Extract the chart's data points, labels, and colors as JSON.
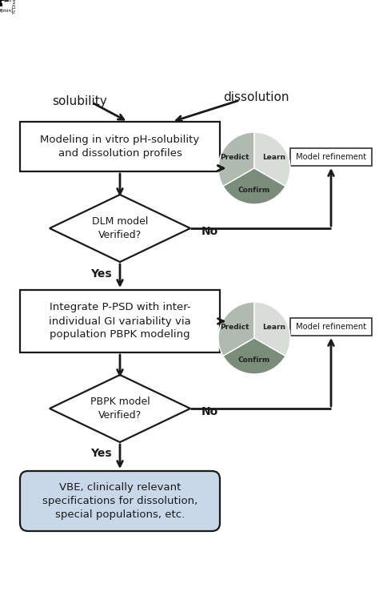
{
  "bg_color": "#ffffff",
  "box_color": "#ffffff",
  "box_edge": "#1a1a1a",
  "vbe_box_color": "#c8d8e8",
  "diamond_color": "#ffffff",
  "diamond_edge": "#1a1a1a",
  "arrow_color": "#1a1a1a",
  "text_color": "#1a1a1a",
  "pie_colors_1": [
    "#b0bab0",
    "#d8ddd8",
    "#7a8c7a"
  ],
  "pie_colors_2": [
    "#b0bab0",
    "#d8ddd8",
    "#7a8c7a"
  ],
  "pie_labels": [
    "Predict",
    "Learn",
    "Confirm"
  ],
  "refinement_box_color": "#ffffff",
  "refinement_box_edge": "#333333",
  "refinement_text": "Model refinement",
  "box1_text": "Modeling in vitro pH-solubility\nand dissolution profiles",
  "box2_text": "Integrate P-PSD with inter-\nindividual GI variability via\npopulation PBPK modeling",
  "box3_text": "VBE, clinically relevant\nspecifications for dissolution,\nspecial populations, etc.",
  "diamond1_text": "DLM model\nVerified?",
  "diamond2_text": "PBPK model\nVerified?",
  "label_solubility": "solubility",
  "label_dissolution": "dissolution",
  "yes_text": "Yes",
  "no_text": "No",
  "figw": 4.74,
  "figh": 7.69,
  "dpi": 100
}
